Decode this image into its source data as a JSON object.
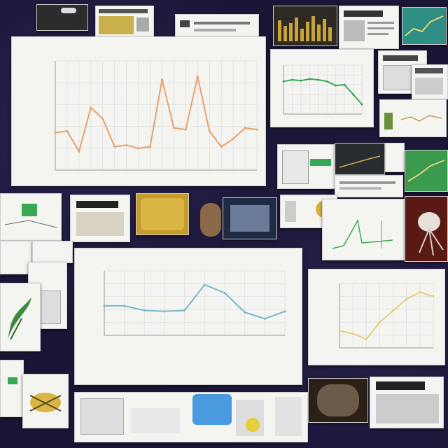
{
  "chart_data": [
    {
      "type": "line",
      "title": "",
      "x": [
        1,
        2,
        3,
        4,
        5,
        6,
        7,
        8,
        9,
        10,
        11,
        12,
        13,
        14,
        15,
        16,
        17,
        18
      ],
      "values": [
        24,
        25,
        12,
        40,
        33,
        15,
        16,
        14,
        15,
        58,
        27,
        26,
        60,
        25,
        15,
        20,
        27,
        26
      ],
      "ylim": [
        0,
        70
      ],
      "color": "#e8a06a"
    },
    {
      "type": "line",
      "title": "",
      "x": [
        1,
        2,
        3,
        4,
        5,
        6,
        7,
        8,
        9,
        10
      ],
      "values": [
        3.2,
        3.2,
        2.7,
        2.6,
        2.7,
        5.5,
        4.6,
        2.5,
        1.8,
        2.6
      ],
      "ylim": [
        0,
        7
      ],
      "color": "#7ab8cc"
    },
    {
      "type": "line",
      "title": "",
      "x": [
        1,
        2,
        3,
        4,
        5,
        6,
        7,
        8
      ],
      "values": [
        1.2,
        1.0,
        0.6,
        1.8,
        2.6,
        3.4,
        3.9,
        3.6
      ],
      "ylim": [
        0,
        4.5
      ],
      "color": "#e6cf7c"
    },
    {
      "type": "line",
      "title": "",
      "x": [
        1,
        2,
        3,
        4,
        5,
        6,
        7,
        8,
        9,
        10
      ],
      "values": [
        4.0,
        4.2,
        4.1,
        4.3,
        4.2,
        4.0,
        3.5,
        3.6,
        2.4,
        1.2
      ],
      "ylim": [
        0,
        6
      ],
      "color": "#3aa757"
    }
  ],
  "colors": {
    "background": "#1b1636",
    "card": "#f4f4f1",
    "accent_orange": "#e8a06a",
    "accent_blue": "#7ab8cc",
    "accent_green": "#3aa757"
  }
}
